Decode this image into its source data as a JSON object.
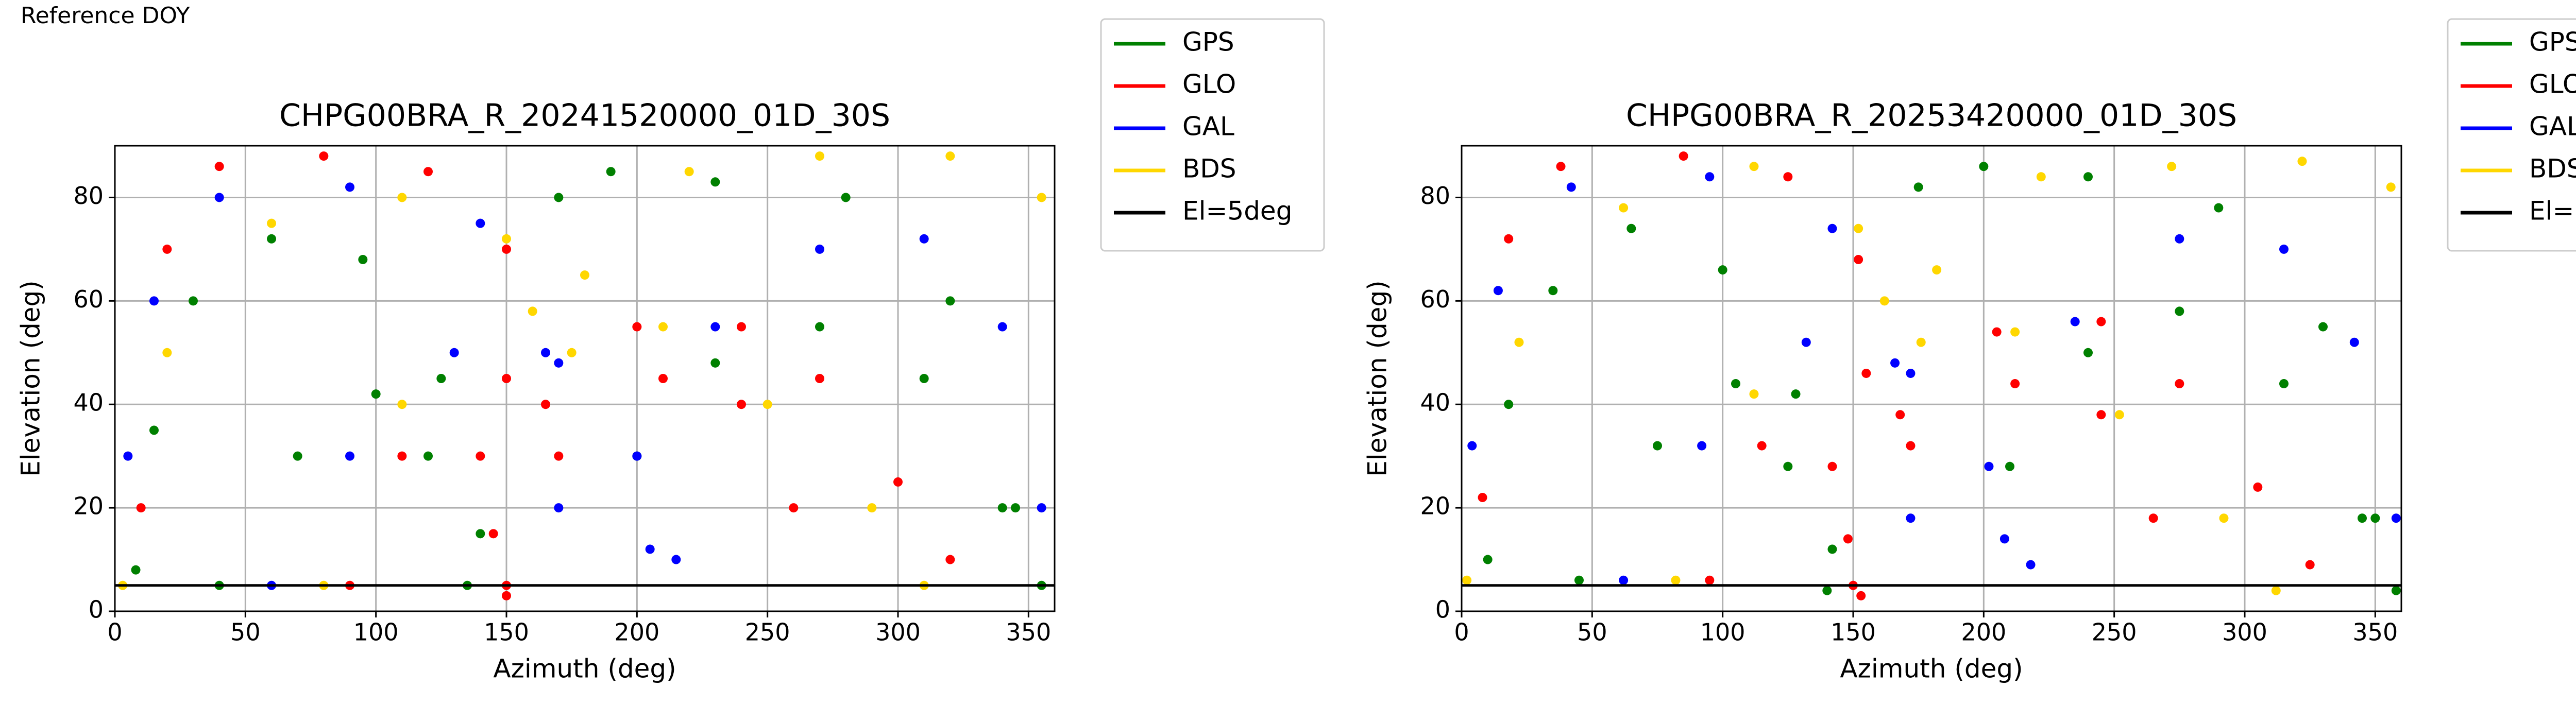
{
  "header": "Reference DOY",
  "chart_data": [
    {
      "type": "scatter",
      "title": "CHPG00BRA_R_20241520000_01D_30S",
      "x_label": "Azimuth (deg)",
      "y_label": "Elevation (deg)",
      "xlim": [
        0,
        360
      ],
      "ylim": [
        0,
        90
      ],
      "xticks": [
        0,
        50,
        100,
        150,
        200,
        250,
        300,
        350
      ],
      "yticks": [
        0,
        20,
        40,
        60,
        80
      ],
      "grid": true,
      "legend": "outside upper right",
      "series": [
        {
          "name": "GPS",
          "color": "#008000",
          "x": [
            8,
            15,
            30,
            60,
            95,
            125,
            140,
            200,
            230,
            270,
            310,
            340,
            355,
            170,
            190,
            230,
            280,
            320,
            345,
            40,
            70,
            100,
            120,
            135
          ],
          "values": [
            8,
            35,
            60,
            72,
            68,
            45,
            15,
            30,
            48,
            55,
            45,
            20,
            5,
            80,
            85,
            83,
            80,
            60,
            20,
            5,
            30,
            42,
            30,
            5
          ]
        },
        {
          "name": "GLO",
          "color": "#ff0000",
          "x": [
            10,
            20,
            40,
            80,
            120,
            150,
            165,
            90,
            110,
            150,
            200,
            240,
            270,
            300,
            320,
            150,
            170,
            210,
            240,
            260,
            140,
            145,
            150
          ],
          "values": [
            20,
            70,
            86,
            88,
            85,
            70,
            40,
            5,
            30,
            45,
            55,
            55,
            45,
            25,
            10,
            5,
            30,
            45,
            40,
            20,
            30,
            15,
            3
          ]
        },
        {
          "name": "GAL",
          "color": "#0000ff",
          "x": [
            5,
            15,
            40,
            90,
            140,
            165,
            170,
            205,
            230,
            270,
            310,
            340,
            355,
            60,
            90,
            130,
            170,
            200,
            215
          ],
          "values": [
            30,
            60,
            80,
            82,
            75,
            50,
            20,
            12,
            55,
            70,
            72,
            55,
            20,
            5,
            30,
            50,
            48,
            30,
            10
          ]
        },
        {
          "name": "BDS",
          "color": "#ffd700",
          "x": [
            3,
            20,
            60,
            110,
            150,
            175,
            180,
            220,
            270,
            320,
            355,
            80,
            110,
            160,
            210,
            250,
            290,
            310
          ],
          "values": [
            5,
            50,
            75,
            80,
            72,
            50,
            65,
            85,
            88,
            88,
            80,
            5,
            40,
            58,
            55,
            40,
            20,
            5
          ]
        },
        {
          "name": "El=5deg",
          "color": "#000000",
          "mode": "line",
          "x": [
            0,
            360
          ],
          "values": [
            5,
            5
          ]
        }
      ]
    },
    {
      "type": "scatter",
      "title": "CHPG00BRA_R_20253420000_01D_30S",
      "x_label": "Azimuth (deg)",
      "y_label": "Elevation (deg)",
      "xlim": [
        0,
        360
      ],
      "ylim": [
        0,
        90
      ],
      "xticks": [
        0,
        50,
        100,
        150,
        200,
        250,
        300,
        350
      ],
      "yticks": [
        0,
        20,
        40,
        60,
        80
      ],
      "grid": true,
      "legend": "outside upper right",
      "series": [
        {
          "name": "GPS",
          "color": "#008000",
          "x": [
            10,
            18,
            35,
            65,
            100,
            128,
            142,
            210,
            240,
            275,
            315,
            345,
            358,
            175,
            200,
            240,
            290,
            330,
            350,
            45,
            75,
            105,
            125,
            140
          ],
          "values": [
            10,
            40,
            62,
            74,
            66,
            42,
            12,
            28,
            50,
            58,
            44,
            18,
            4,
            82,
            86,
            84,
            78,
            55,
            18,
            6,
            32,
            44,
            28,
            4
          ]
        },
        {
          "name": "GLO",
          "color": "#ff0000",
          "x": [
            8,
            18,
            38,
            85,
            125,
            152,
            168,
            95,
            115,
            155,
            205,
            245,
            275,
            305,
            325,
            150,
            172,
            212,
            245,
            265,
            142,
            148,
            153
          ],
          "values": [
            22,
            72,
            86,
            88,
            84,
            68,
            38,
            6,
            32,
            46,
            54,
            56,
            44,
            24,
            9,
            5,
            32,
            44,
            38,
            18,
            28,
            14,
            3
          ]
        },
        {
          "name": "GAL",
          "color": "#0000ff",
          "x": [
            4,
            14,
            42,
            95,
            142,
            166,
            172,
            208,
            235,
            275,
            315,
            342,
            358,
            62,
            92,
            132,
            172,
            202,
            218
          ],
          "values": [
            32,
            62,
            82,
            84,
            74,
            48,
            18,
            14,
            56,
            72,
            70,
            52,
            18,
            6,
            32,
            52,
            46,
            28,
            9
          ]
        },
        {
          "name": "BDS",
          "color": "#ffd700",
          "x": [
            2,
            22,
            62,
            112,
            152,
            176,
            182,
            222,
            272,
            322,
            356,
            82,
            112,
            162,
            212,
            252,
            292,
            312
          ],
          "values": [
            6,
            52,
            78,
            86,
            74,
            52,
            66,
            84,
            86,
            87,
            82,
            6,
            42,
            60,
            54,
            38,
            18,
            4
          ]
        },
        {
          "name": "El=5deg",
          "color": "#000000",
          "mode": "line",
          "x": [
            0,
            360
          ],
          "values": [
            5,
            5
          ]
        }
      ]
    }
  ]
}
